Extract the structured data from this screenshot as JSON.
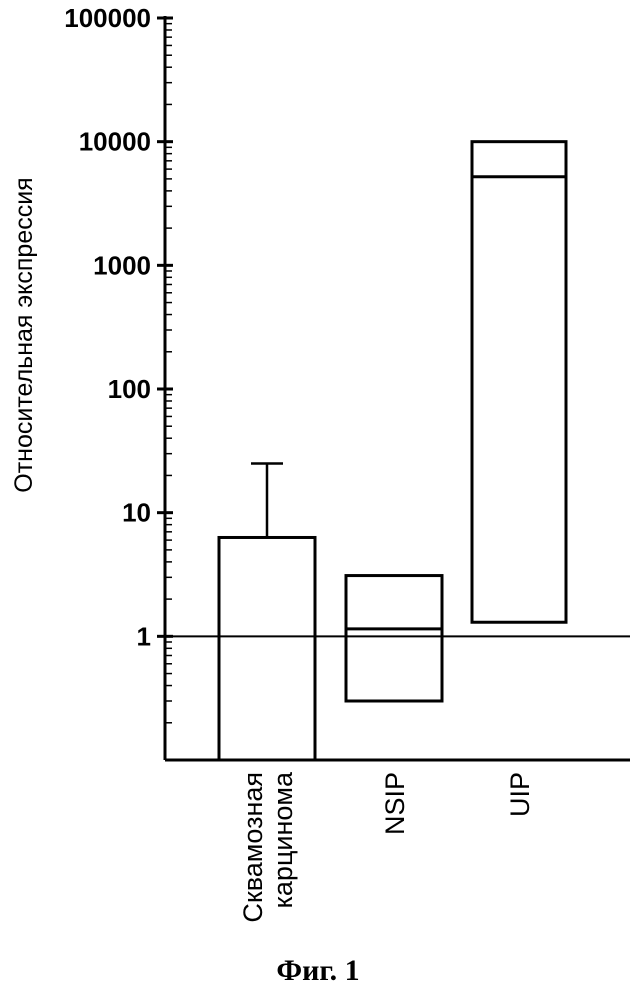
{
  "chart_data": {
    "type": "bar",
    "ylabel": "Относительная экспрессия",
    "yscale": "log",
    "ylim": [
      0.1,
      100000
    ],
    "yticks": [
      {
        "value": 1,
        "label": "1"
      },
      {
        "value": 10,
        "label": "10"
      },
      {
        "value": 100,
        "label": "100"
      },
      {
        "value": 1000,
        "label": "1000"
      },
      {
        "value": 10000,
        "label": "10000"
      },
      {
        "value": 100000,
        "label": "100000"
      }
    ],
    "reference_line": 1,
    "categories": [
      {
        "lines": [
          "Сквамозная",
          "карцинома"
        ]
      },
      {
        "lines": [
          "NSIP"
        ]
      },
      {
        "lines": [
          "UIP"
        ]
      }
    ],
    "boxes": [
      {
        "low": 0.1,
        "high": 6.3,
        "median": null,
        "whisker_high": 25
      },
      {
        "low": 0.3,
        "high": 3.1,
        "median": 1.15,
        "whisker_high": null
      },
      {
        "low": 1.3,
        "high": 10000,
        "median": 5200,
        "whisker_high": null
      }
    ],
    "caption": "Фиг. 1"
  }
}
